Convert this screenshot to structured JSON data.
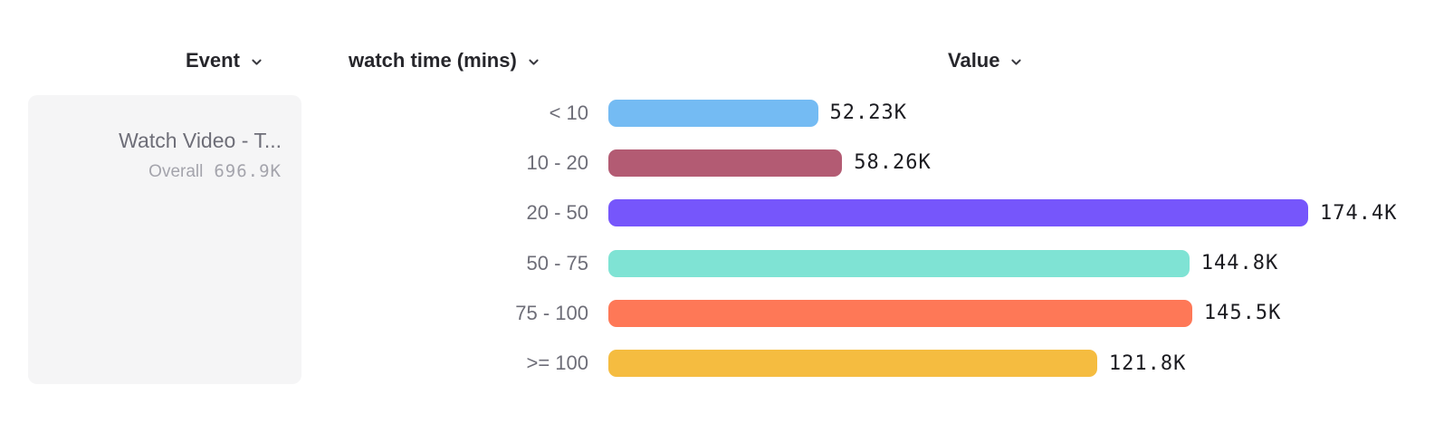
{
  "header": {
    "event_column": "Event",
    "breakdown_column": "watch time (mins)",
    "value_column": "Value"
  },
  "event_card": {
    "title": "Watch Video - T...",
    "overall_label": "Overall",
    "overall_value": "696.9K"
  },
  "chart_data": {
    "type": "bar",
    "orientation": "horizontal",
    "title": "",
    "xlabel": "Value",
    "ylabel": "watch time (mins)",
    "categories": [
      "< 10",
      "10 - 20",
      "20 - 50",
      "50 - 75",
      "75 - 100",
      ">= 100"
    ],
    "values": [
      52.23,
      58.26,
      174.4,
      144.8,
      145.5,
      121.8
    ],
    "unit": "K",
    "value_labels": [
      "52.23K",
      "58.26K",
      "174.4K",
      "144.8K",
      "145.5K",
      "121.8K"
    ],
    "bar_colors": [
      "#74bbf3",
      "#b35b73",
      "#7656fb",
      "#7fe3d4",
      "#fe7857",
      "#f5bc40"
    ],
    "xlim": [
      0,
      174.4
    ],
    "series_name": "Watch Video - T...",
    "overall_total": "696.9K",
    "legend": false,
    "grid": false
  },
  "colors": {
    "card_bg": "#f5f5f6",
    "category_text": "#6e6e78",
    "value_text": "#1c1c21",
    "header_text": "#26262b",
    "muted_text": "#a4a4ac"
  }
}
